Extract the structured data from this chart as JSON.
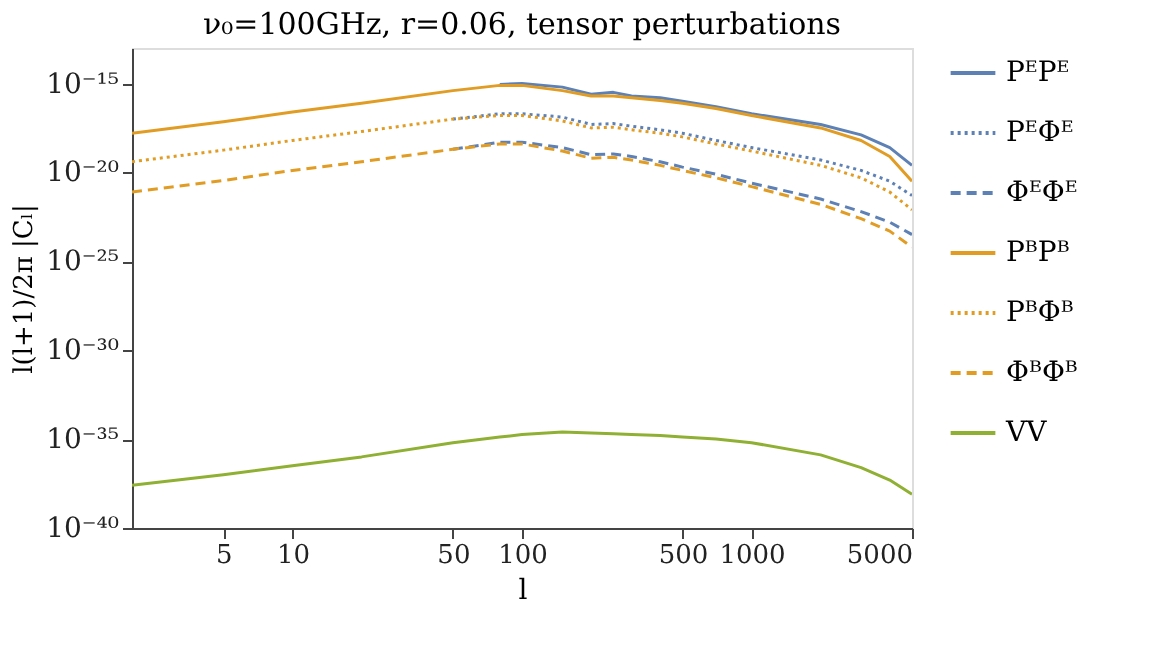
{
  "chart_data": {
    "type": "line",
    "title": "ν₀=100GHz, r=0.06, tensor perturbations",
    "xlabel": "l",
    "ylabel": "l(l+1)/2π |Cₗ|",
    "x": [
      2,
      5,
      10,
      20,
      50,
      80,
      100,
      150,
      200,
      250,
      300,
      400,
      500,
      700,
      1000,
      2000,
      3000,
      4000,
      5000
    ],
    "series": [
      {
        "name": "PᴱPᴱ",
        "color": "#5e81b5",
        "line_style": "solid",
        "values": [
          null,
          null,
          null,
          null,
          null,
          8.9e-16,
          1e-15,
          6.3e-16,
          2.5e-16,
          3.2e-16,
          2e-16,
          1.6e-16,
          1e-16,
          5e-17,
          2e-17,
          5e-18,
          1.3e-18,
          2.5e-19,
          2.5e-20
        ]
      },
      {
        "name": "PᴱΦᴱ",
        "color": "#5e81b5",
        "line_style": "dotted",
        "values": [
          null,
          null,
          null,
          null,
          1e-17,
          2e-17,
          2e-17,
          1.3e-17,
          5e-18,
          5.6e-18,
          4e-18,
          2.5e-18,
          1.6e-18,
          6.3e-19,
          2.5e-19,
          5e-20,
          1.3e-20,
          3.2e-21,
          5e-22
        ]
      },
      {
        "name": "ΦᴱΦᴱ",
        "color": "#5e81b5",
        "line_style": "dashed",
        "values": [
          null,
          null,
          null,
          null,
          2e-19,
          5e-19,
          5e-19,
          2.5e-19,
          1e-19,
          1.1e-19,
          7.9e-20,
          4e-20,
          2e-20,
          7.9e-21,
          2.5e-21,
          3.2e-22,
          6.3e-23,
          1.6e-23,
          3.2e-24
        ]
      },
      {
        "name": "PᴮPᴮ",
        "color": "#e19c24",
        "line_style": "solid",
        "values": [
          1.6e-18,
          7.1e-18,
          2.5e-17,
          7.9e-17,
          4e-16,
          7.9e-16,
          7.9e-16,
          4e-16,
          2e-16,
          2e-16,
          1.6e-16,
          1.1e-16,
          7.9e-17,
          4e-17,
          1.6e-17,
          3.2e-18,
          6.3e-19,
          7.9e-20,
          3.2e-21
        ]
      },
      {
        "name": "PᴮΦᴮ",
        "color": "#e19c24",
        "line_style": "dotted",
        "values": [
          4e-20,
          1.8e-19,
          6.3e-19,
          2e-18,
          1e-17,
          1.6e-17,
          1.6e-17,
          7.9e-18,
          3.2e-18,
          3.5e-18,
          2.5e-18,
          1.6e-18,
          1e-18,
          4e-19,
          1.6e-19,
          2.5e-20,
          5e-21,
          7.9e-22,
          7.9e-23
        ]
      },
      {
        "name": "ΦᴮΦᴮ",
        "color": "#e19c24",
        "line_style": "dashed",
        "values": [
          7.9e-22,
          3.5e-21,
          1.3e-20,
          4e-20,
          2e-19,
          4e-19,
          4e-19,
          1.6e-19,
          6.3e-20,
          7.1e-20,
          5e-20,
          2.5e-20,
          1.3e-20,
          5e-21,
          1.6e-21,
          1.6e-22,
          2.5e-23,
          5e-24,
          6.3e-25
        ]
      },
      {
        "name": "VV",
        "color": "#8fb032",
        "line_style": "solid",
        "values": [
          2.5e-38,
          1e-37,
          3.2e-37,
          1e-36,
          6.3e-36,
          1.3e-35,
          1.8e-35,
          2.5e-35,
          2.2e-35,
          2e-35,
          1.8e-35,
          1.6e-35,
          1.3e-35,
          1e-35,
          6.3e-36,
          1.3e-36,
          2.5e-37,
          5e-38,
          7.9e-39
        ]
      }
    ],
    "log": "xy",
    "xlim": [
      2,
      5000
    ],
    "xticks": [
      5,
      10,
      50,
      100,
      500,
      1000,
      5000
    ],
    "ylim": [
      1e-40,
      1e-13
    ],
    "yticks": [
      {
        "value": 1e-40,
        "label": "10⁻⁴⁰"
      },
      {
        "value": 1e-35,
        "label": "10⁻³⁵"
      },
      {
        "value": 1e-30,
        "label": "10⁻³⁰"
      },
      {
        "value": 1e-25,
        "label": "10⁻²⁵"
      },
      {
        "value": 1e-20,
        "label": "10⁻²⁰"
      },
      {
        "value": 1e-15,
        "label": "10⁻¹⁵"
      }
    ],
    "grid": false,
    "legend": "right",
    "marker": "none"
  }
}
